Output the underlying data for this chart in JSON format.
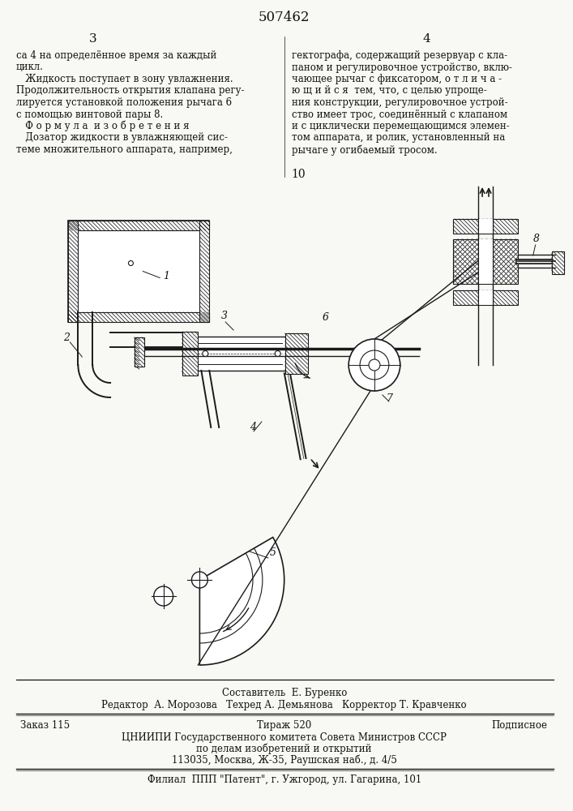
{
  "patent_number": "507462",
  "page_left": "3",
  "page_right": "4",
  "page_number_10": "10",
  "text_left_col": [
    "са 4 на определённое время за каждый",
    "цикл.",
    "   Жидкость поступает в зону увлажнения.",
    "Продолжительность открытия клапана регу-",
    "лируется установкой положения рычага 6",
    "с помощью винтовой пары 8.",
    "   Ф о р м у л а  и з о б р е т е н и я",
    "   Дозатор жидкости в увлажняющей сис-",
    "теме множительного аппарата, например,"
  ],
  "text_right_col": [
    "гектографа, содержащий резервуар с кла-",
    "паном и регулировочное устройство, вклю-",
    "чающее рычаг с фиксатором, о т л и ч а -",
    "ю щ и й с я  тем, что, с целью упроще-",
    "ния конструкции, регулировочное устрой-",
    "ство имеет трос, соединённый с клапаном",
    "и с циклически перемещающимся элемен-",
    "том аппарата, и ролик, установленный на",
    "рычаге у огибаемый тросом."
  ],
  "footer_line1": "Составитель  Е. Буренко",
  "footer_line2": "Редактор  А. Морозова   Техред А. Демьянова   Корректор Т. Кравченко",
  "footer_order": "Заказ 115",
  "footer_tirazh": "Тираж 520",
  "footer_podp": "Подписное",
  "footer_line4": "ЦНИИПИ Государственного комитета Совета Министров СССР",
  "footer_line5": "по делам изобретений и открытий",
  "footer_line6": "113035, Москва, Ж-35, Раушская наб., д. 4/5",
  "footer_line7": "Филиал  ППП \"Патент\", г. Ужгород, ул. Гагарина, 101",
  "bg_color": "#f8f8f4",
  "text_color": "#111111",
  "diagram_color": "#1a1a1a"
}
